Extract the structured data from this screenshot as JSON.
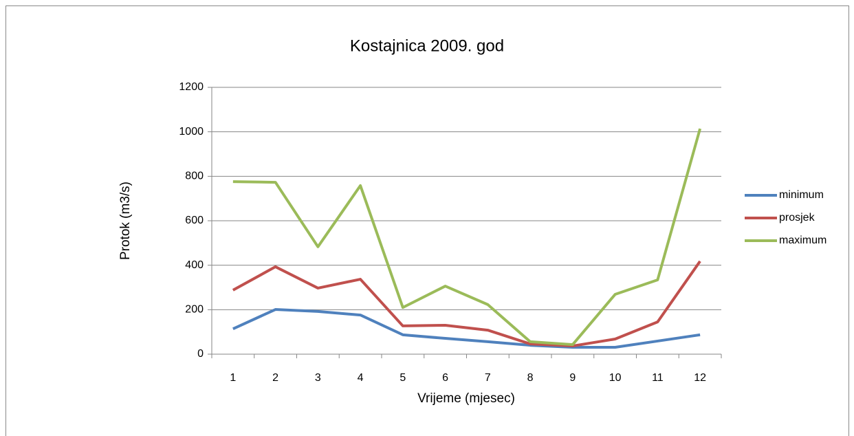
{
  "chart_data": {
    "type": "line",
    "title": "Kostajnica 2009. god",
    "x_label": "Vrijeme (mjesec)",
    "y_label": "Protok (m3/s)",
    "categories": [
      "1",
      "2",
      "3",
      "4",
      "5",
      "6",
      "7",
      "8",
      "9",
      "10",
      "11",
      "12"
    ],
    "series": [
      {
        "name": "minimum",
        "color": "#4f81bd",
        "values": [
          114,
          201,
          192,
          176,
          87,
          71,
          56,
          40,
          31,
          31,
          59,
          87
        ]
      },
      {
        "name": "prosjek",
        "color": "#c0504d",
        "values": [
          288,
          393,
          297,
          337,
          127,
          130,
          108,
          46,
          37,
          68,
          145,
          418
        ]
      },
      {
        "name": "maximum",
        "color": "#9bbb59",
        "values": [
          776,
          773,
          483,
          758,
          210,
          306,
          223,
          56,
          43,
          269,
          334,
          1014
        ]
      }
    ],
    "ylim": [
      0,
      1200
    ],
    "yticks": [
      0,
      200,
      400,
      600,
      800,
      1000,
      1200
    ],
    "grid": true,
    "legend": "right"
  }
}
